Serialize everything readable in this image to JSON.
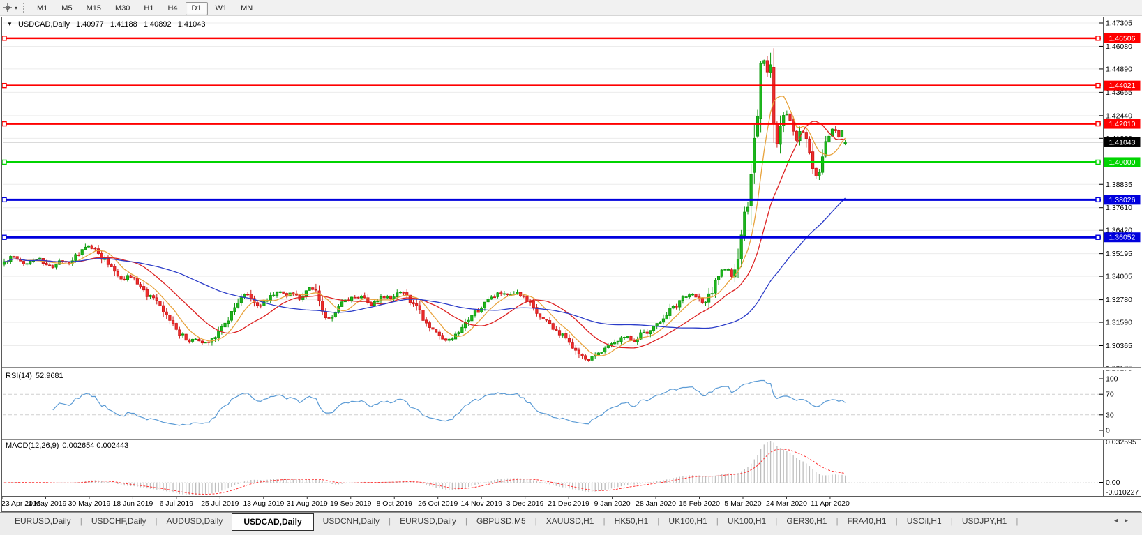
{
  "toolbar": {
    "cursor_tool": "crosshair-tool",
    "timeframes": [
      "M1",
      "M5",
      "M15",
      "M30",
      "H1",
      "H4",
      "D1",
      "W1",
      "MN"
    ],
    "active_timeframe": "D1",
    "dropdown_caret": "▾"
  },
  "chart": {
    "dropdown_triangle": "▼"
  },
  "chart_data": {
    "type": "candlestick",
    "symbol": "USDCAD,Daily",
    "ohlc_display": {
      "open": "1.40977",
      "high": "1.41188",
      "low": "1.40892",
      "close": "1.41043"
    },
    "price_axis": {
      "ticks": [
        "1.47305",
        "1.46080",
        "1.44890",
        "1.43665",
        "1.42440",
        "1.41250",
        "1.38835",
        "1.37610",
        "1.36420",
        "1.35195",
        "1.34005",
        "1.32780",
        "1.31590",
        "1.30365",
        "1.29175"
      ],
      "max": "1.47305",
      "min": "1.29175"
    },
    "horizontal_lines": [
      {
        "label": "1.46506",
        "color": "#ff0000",
        "width": 2.5
      },
      {
        "label": "1.44021",
        "color": "#ff0000",
        "width": 2.5
      },
      {
        "label": "1.42010",
        "color": "#ff0000",
        "width": 2.5
      },
      {
        "label": "1.40000",
        "color": "#00d400",
        "width": 3
      },
      {
        "label": "1.38026",
        "color": "#0000dd",
        "width": 3
      },
      {
        "label": "1.36052",
        "color": "#0000dd",
        "width": 3
      }
    ],
    "current_price": {
      "label": "1.41043"
    },
    "x_axis_dates": [
      "23 Apr 2019",
      "11 May 2019",
      "30 May 2019",
      "18 Jun 2019",
      "6 Jul 2019",
      "25 Jul 2019",
      "13 Aug 2019",
      "31 Aug 2019",
      "19 Sep 2019",
      "8 Oct 2019",
      "26 Oct 2019",
      "14 Nov 2019",
      "3 Dec 2019",
      "21 Dec 2019",
      "9 Jan 2020",
      "28 Jan 2020",
      "15 Feb 2020",
      "5 Mar 2020",
      "24 Mar 2020",
      "11 Apr 2020"
    ],
    "price_path": [
      [
        0,
        1.346
      ],
      [
        8,
        1.348
      ],
      [
        18,
        1.3505
      ],
      [
        28,
        1.3475
      ],
      [
        38,
        1.3465
      ],
      [
        48,
        1.3495
      ],
      [
        58,
        1.349
      ],
      [
        68,
        1.345
      ],
      [
        78,
        1.3455
      ],
      [
        88,
        1.348
      ],
      [
        98,
        1.347
      ],
      [
        108,
        1.35
      ],
      [
        118,
        1.3535
      ],
      [
        128,
        1.356
      ],
      [
        136,
        1.3545
      ],
      [
        144,
        1.351
      ],
      [
        152,
        1.348
      ],
      [
        160,
        1.3455
      ],
      [
        168,
        1.342
      ],
      [
        176,
        1.3375
      ],
      [
        184,
        1.341
      ],
      [
        192,
        1.339
      ],
      [
        200,
        1.335
      ],
      [
        210,
        1.3305
      ],
      [
        220,
        1.328
      ],
      [
        230,
        1.3235
      ],
      [
        240,
        1.318
      ],
      [
        252,
        1.313
      ],
      [
        262,
        1.3085
      ],
      [
        272,
        1.306
      ],
      [
        282,
        1.3072
      ],
      [
        292,
        1.3045
      ],
      [
        302,
        1.3068
      ],
      [
        312,
        1.3105
      ],
      [
        322,
        1.315
      ],
      [
        332,
        1.3215
      ],
      [
        342,
        1.3275
      ],
      [
        352,
        1.331
      ],
      [
        362,
        1.3275
      ],
      [
        372,
        1.324
      ],
      [
        380,
        1.327
      ],
      [
        390,
        1.3305
      ],
      [
        400,
        1.332
      ],
      [
        410,
        1.33
      ],
      [
        420,
        1.3312
      ],
      [
        430,
        1.3285
      ],
      [
        440,
        1.333
      ],
      [
        448,
        1.3345
      ],
      [
        456,
        1.328
      ],
      [
        464,
        1.3205
      ],
      [
        472,
        1.3175
      ],
      [
        480,
        1.3215
      ],
      [
        490,
        1.3255
      ],
      [
        502,
        1.3282
      ],
      [
        512,
        1.3292
      ],
      [
        522,
        1.33
      ],
      [
        532,
        1.3248
      ],
      [
        542,
        1.3272
      ],
      [
        552,
        1.33
      ],
      [
        562,
        1.329
      ],
      [
        572,
        1.333
      ],
      [
        580,
        1.331
      ],
      [
        590,
        1.3268
      ],
      [
        600,
        1.322
      ],
      [
        610,
        1.316
      ],
      [
        620,
        1.312
      ],
      [
        630,
        1.3085
      ],
      [
        640,
        1.3058
      ],
      [
        650,
        1.3072
      ],
      [
        660,
        1.311
      ],
      [
        670,
        1.316
      ],
      [
        680,
        1.3205
      ],
      [
        690,
        1.3235
      ],
      [
        700,
        1.328
      ],
      [
        710,
        1.3302
      ],
      [
        720,
        1.3312
      ],
      [
        730,
        1.329
      ],
      [
        740,
        1.3312
      ],
      [
        752,
        1.3282
      ],
      [
        762,
        1.325
      ],
      [
        772,
        1.3192
      ],
      [
        782,
        1.3172
      ],
      [
        792,
        1.313
      ],
      [
        802,
        1.31
      ],
      [
        815,
        1.3062
      ],
      [
        825,
        1.3012
      ],
      [
        835,
        1.2972
      ],
      [
        845,
        1.296
      ],
      [
        855,
        1.2992
      ],
      [
        865,
        1.3022
      ],
      [
        877,
        1.3052
      ],
      [
        888,
        1.3072
      ],
      [
        898,
        1.3092
      ],
      [
        908,
        1.3062
      ],
      [
        918,
        1.3092
      ],
      [
        928,
        1.3112
      ],
      [
        940,
        1.3142
      ],
      [
        950,
        1.318
      ],
      [
        960,
        1.3222
      ],
      [
        970,
        1.3252
      ],
      [
        980,
        1.3292
      ],
      [
        990,
        1.3312
      ],
      [
        1002,
        1.3282
      ],
      [
        1010,
        1.3252
      ],
      [
        1018,
        1.3302
      ],
      [
        1026,
        1.3385
      ],
      [
        1034,
        1.3425
      ],
      [
        1042,
        1.3445
      ],
      [
        1049,
        1.3392
      ],
      [
        1056,
        1.3465
      ],
      [
        1065,
        1.365
      ],
      [
        1072,
        1.3785
      ],
      [
        1078,
        1.3955
      ],
      [
        1084,
        1.416
      ],
      [
        1089,
        1.442
      ],
      [
        1093,
        1.463
      ],
      [
        1097,
        1.448
      ],
      [
        1101,
        1.4445
      ],
      [
        1105,
        1.4485
      ],
      [
        1109,
        1.426
      ],
      [
        1113,
        1.406
      ],
      [
        1117,
        1.415
      ],
      [
        1121,
        1.4225
      ],
      [
        1127,
        1.4265
      ],
      [
        1132,
        1.4205
      ],
      [
        1137,
        1.4185
      ],
      [
        1142,
        1.4105
      ],
      [
        1147,
        1.4185
      ],
      [
        1152,
        1.415
      ],
      [
        1157,
        1.4085
      ],
      [
        1162,
        1.402
      ],
      [
        1167,
        1.396
      ],
      [
        1172,
        1.3905
      ],
      [
        1177,
        1.3995
      ],
      [
        1182,
        1.408
      ],
      [
        1190,
        1.416
      ],
      [
        1196,
        1.4185
      ],
      [
        1201,
        1.4125
      ],
      [
        1206,
        1.4165
      ],
      [
        1215,
        1.4104
      ]
    ],
    "moving_averages": [
      {
        "period": 8,
        "color": "#e8a33d"
      },
      {
        "period": 20,
        "color": "#dd2222"
      },
      {
        "period": 55,
        "color": "#2b3cc8"
      }
    ],
    "indicators": {
      "rsi": {
        "title": "RSI(14)",
        "value": "52.9681",
        "levels": [
          "100",
          "70",
          "30",
          "0"
        ],
        "dashed_levels": [
          70,
          30
        ],
        "range": [
          0,
          100
        ],
        "color": "#5b9bd5"
      },
      "macd": {
        "title": "MACD(12,26,9)",
        "values": "0.002654 0.002443",
        "axis_labels": [
          "0.032595",
          "0.00",
          "-0.010227"
        ],
        "max": 0.032595,
        "min": -0.010227
      }
    },
    "style": {
      "up_fill": "#1db51d",
      "up_stroke": "#0b970b",
      "down_fill": "#ef2d2d",
      "down_stroke": "#cb1616",
      "grid": "#ececec",
      "current_line": "#b4b4b4",
      "current_box": "#000000",
      "rsi_level_color": "#cfcfcf",
      "macd_hist": "#bdbdbd",
      "macd_signal": "#ff3232"
    }
  },
  "tabs": {
    "items": [
      {
        "label": "EURUSD,Daily",
        "active": false
      },
      {
        "label": "USDCHF,Daily",
        "active": false
      },
      {
        "label": "AUDUSD,Daily",
        "active": false
      },
      {
        "label": "USDCAD,Daily",
        "active": true
      },
      {
        "label": "USDCNH,Daily",
        "active": false
      },
      {
        "label": "EURUSD,Daily",
        "active": false
      },
      {
        "label": "GBPUSD,M5",
        "active": false
      },
      {
        "label": "XAUUSD,H1",
        "active": false
      },
      {
        "label": "HK50,H1",
        "active": false
      },
      {
        "label": "UK100,H1",
        "active": false
      },
      {
        "label": "UK100,H1",
        "active": false
      },
      {
        "label": "GER30,H1",
        "active": false
      },
      {
        "label": "FRA40,H1",
        "active": false
      },
      {
        "label": "USOil,H1",
        "active": false
      },
      {
        "label": "USDJPY,H1",
        "active": false
      }
    ],
    "nav_left": "◂",
    "nav_right": "▸"
  }
}
